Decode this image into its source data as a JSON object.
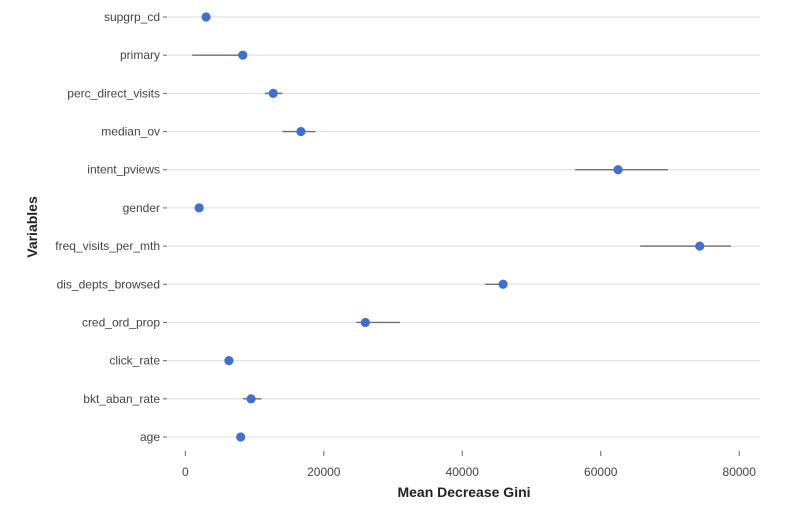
{
  "chart_data": {
    "type": "dot-errorbar",
    "xlabel": "Mean Decrease Gini",
    "ylabel": "Variables",
    "xlim": [
      -2500,
      83000
    ],
    "xticks": [
      0,
      20000,
      40000,
      60000,
      80000
    ],
    "xtick_labels": [
      "0",
      "20000",
      "40000",
      "60000",
      "80000"
    ],
    "grid": "horizontal",
    "point_color": "#3f6fcf",
    "errorbar_color": "#6f6f6f",
    "points": [
      {
        "variable": "supgrp_cd",
        "value": 3000,
        "low": 2900,
        "high": 3100
      },
      {
        "variable": "primary",
        "value": 8300,
        "low": 1000,
        "high": 8300
      },
      {
        "variable": "perc_direct_visits",
        "value": 12700,
        "low": 11500,
        "high": 14000
      },
      {
        "variable": "median_ov",
        "value": 16700,
        "low": 14000,
        "high": 18800
      },
      {
        "variable": "intent_pviews",
        "value": 62500,
        "low": 56300,
        "high": 69700
      },
      {
        "variable": "gender",
        "value": 2000,
        "low": 1900,
        "high": 2100
      },
      {
        "variable": "freq_visits_per_mth",
        "value": 74300,
        "low": 65700,
        "high": 78800
      },
      {
        "variable": "dis_depts_browsed",
        "value": 45900,
        "low": 43300,
        "high": 46200
      },
      {
        "variable": "cred_ord_prop",
        "value": 26000,
        "low": 24700,
        "high": 31000
      },
      {
        "variable": "click_rate",
        "value": 6300,
        "low": 6000,
        "high": 6600
      },
      {
        "variable": "bkt_aban_rate",
        "value": 9500,
        "low": 8300,
        "high": 11000
      },
      {
        "variable": "age",
        "value": 8000,
        "low": 7700,
        "high": 8300
      }
    ]
  }
}
